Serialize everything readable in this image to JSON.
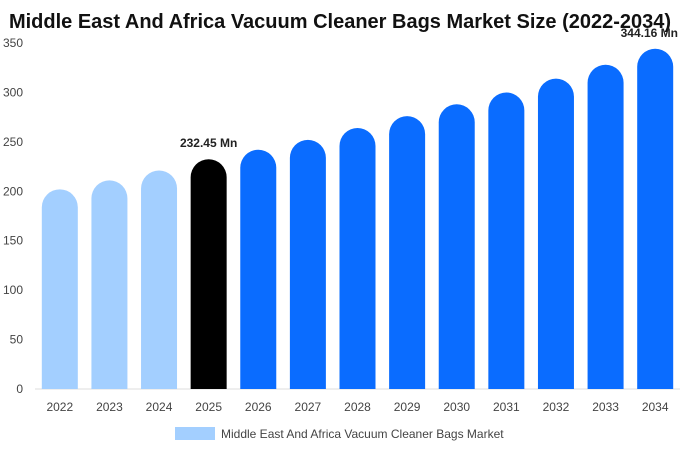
{
  "chart_data": {
    "type": "bar",
    "title": "Middle East And Africa Vacuum Cleaner Bags Market Size (2022-2034)",
    "categories": [
      "2022",
      "2023",
      "2024",
      "2025",
      "2026",
      "2027",
      "2028",
      "2029",
      "2030",
      "2031",
      "2032",
      "2033",
      "2034"
    ],
    "series": [
      {
        "name": "Middle East And Africa Vacuum Cleaner Bags Market",
        "values": [
          202,
          211,
          221,
          232.45,
          242,
          252,
          264,
          276,
          288,
          300,
          314,
          328,
          344.16
        ]
      }
    ],
    "ylim": [
      0,
      350
    ],
    "yticks": [
      0,
      50,
      100,
      150,
      200,
      250,
      300,
      350
    ],
    "data_labels": [
      {
        "index": 3,
        "text": "232.45 Mn"
      },
      {
        "index": 12,
        "text": "344.16 Mn"
      }
    ],
    "colors": {
      "historical": "#a3cfff",
      "current": "#000000",
      "forecast": "#0a6cff"
    },
    "historical_count": 3,
    "current_index": 3,
    "legend_position": "bottom"
  }
}
